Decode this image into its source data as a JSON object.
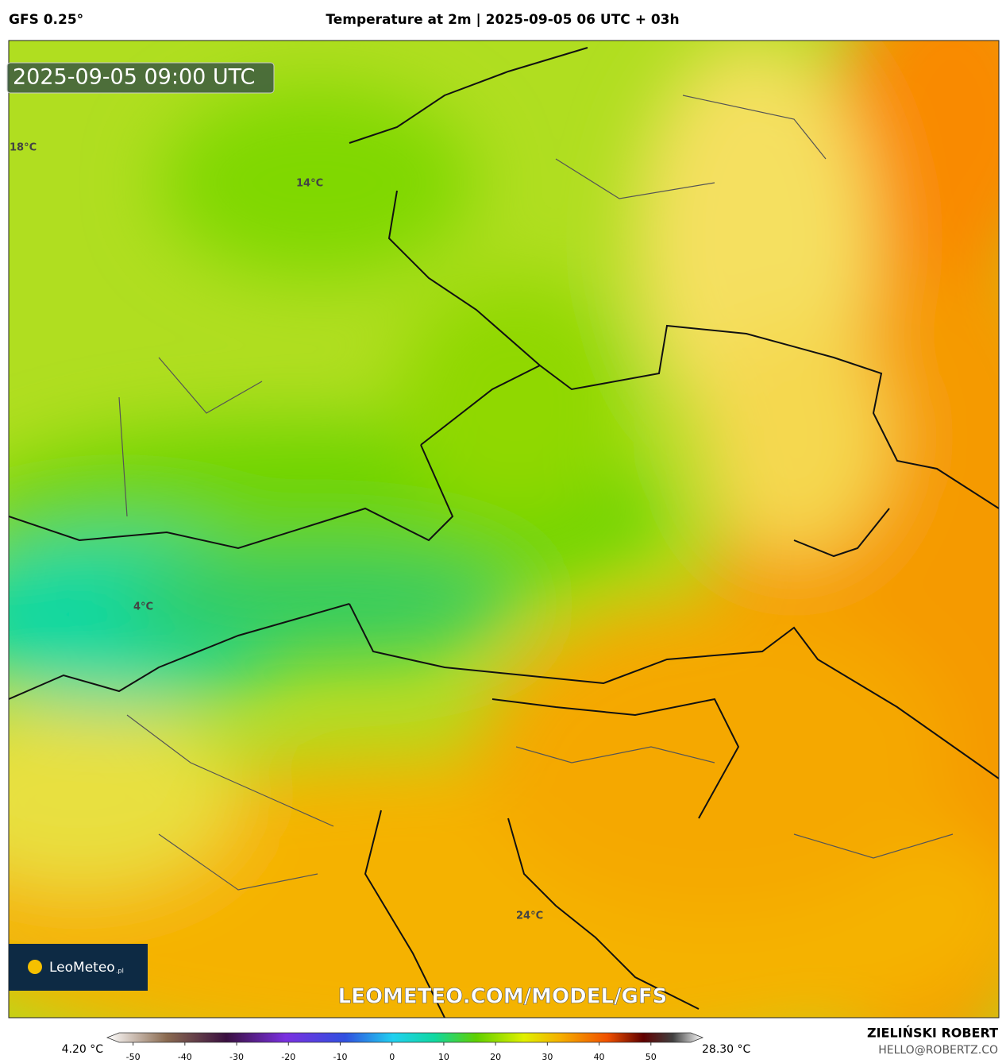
{
  "header": {
    "model": "GFS 0.25°",
    "title": "Temperature at 2m | 2025-09-05 06 UTC + 03h"
  },
  "timestamp": "2025-09-05 09:00 UTC",
  "map_labels": [
    "18°C",
    "14°C",
    "4°C",
    "24°C"
  ],
  "logo": {
    "name": "LeoMeteo",
    "suffix": ".pl"
  },
  "watermark": "LEOMETEO.COM/MODEL/GFS",
  "colorbar": {
    "min_label": "4.20 °C",
    "max_label": "28.30 °C",
    "lim": [
      -55,
      60
    ],
    "ticks": [
      -50,
      -40,
      -30,
      -20,
      -10,
      0,
      10,
      20,
      30,
      40,
      50
    ]
  },
  "author": {
    "name": "ZIELIŃSKI ROBERT",
    "email": "HELLO@ROBERTZ.CO"
  }
}
